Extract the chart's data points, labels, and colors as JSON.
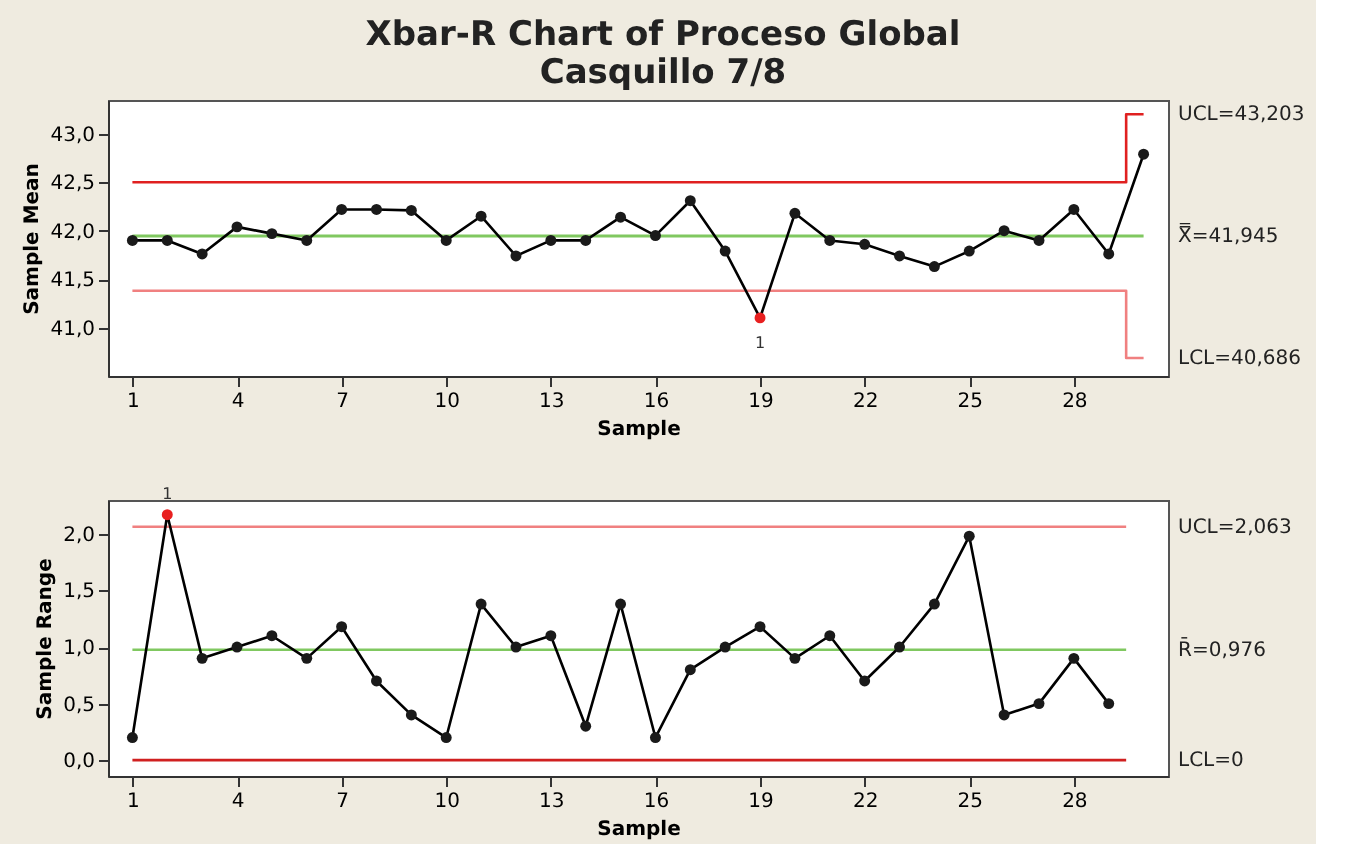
{
  "chart_data": [
    {
      "type": "line",
      "title": "Xbar-R Chart of Proceso Global\nCasquillo 7/8",
      "xlabel": "Sample",
      "ylabel": "Sample Mean",
      "xlim": [
        0.3,
        30.7
      ],
      "xticks": [
        1,
        4,
        7,
        10,
        13,
        16,
        19,
        22,
        25,
        28
      ],
      "ylim": [
        40.5,
        43.35
      ],
      "yticks": [
        {
          "value": 41,
          "label": "41,0"
        },
        {
          "value": 41.5,
          "label": "41,5"
        },
        {
          "value": 42,
          "label": "42,0"
        },
        {
          "value": 42.5,
          "label": "42,5"
        },
        {
          "value": 43,
          "label": "43,0"
        }
      ],
      "grid": false,
      "series": [
        {
          "color": "#e02020",
          "marker": "none",
          "x": [
            1,
            29.5,
            29.5,
            30
          ],
          "values": [
            42.5,
            42.5,
            43.203,
            43.203
          ]
        },
        {
          "color": "#f08080",
          "marker": "none",
          "x": [
            1,
            29.5,
            29.5,
            30
          ],
          "values": [
            41.38,
            41.38,
            40.686,
            40.686
          ]
        },
        {
          "color": "#000000",
          "marker": "circle",
          "x": [
            1,
            2,
            3,
            4,
            5,
            6,
            7,
            8,
            9,
            10,
            11,
            12,
            13,
            14,
            15,
            16,
            17,
            18,
            19,
            20,
            21,
            22,
            23,
            24,
            25,
            26,
            27,
            28,
            29,
            30
          ],
          "values": [
            41.9,
            41.9,
            41.76,
            42.04,
            41.97,
            41.9,
            42.22,
            42.22,
            42.21,
            41.9,
            42.15,
            41.74,
            41.9,
            41.9,
            42.14,
            41.95,
            42.31,
            41.79,
            41.1,
            42.18,
            41.9,
            41.86,
            41.74,
            41.63,
            41.79,
            42.0,
            41.9,
            42.22,
            41.76,
            42.79
          ],
          "colors": [
            "#1a1a1a",
            "#1a1a1a",
            "#1a1a1a",
            "#1a1a1a",
            "#1a1a1a",
            "#1a1a1a",
            "#1a1a1a",
            "#1a1a1a",
            "#1a1a1a",
            "#1a1a1a",
            "#1a1a1a",
            "#1a1a1a",
            "#1a1a1a",
            "#1a1a1a",
            "#1a1a1a",
            "#1a1a1a",
            "#1a1a1a",
            "#1a1a1a",
            "#e82020",
            "#1a1a1a",
            "#1a1a1a",
            "#1a1a1a",
            "#1a1a1a",
            "#1a1a1a",
            "#1a1a1a",
            "#1a1a1a",
            "#1a1a1a",
            "#1a1a1a",
            "#1a1a1a",
            "#1a1a1a"
          ]
        }
      ],
      "ref_lines": [
        {
          "axis": "y",
          "value": 41.945,
          "color": "#80c860"
        }
      ],
      "annotations": [
        {
          "text": "UCL=43,203",
          "x": 30,
          "y": 43.203
        },
        {
          "text": "X̿=41,945",
          "x": 30,
          "y": 41.945
        },
        {
          "text": "LCL=40,686",
          "x": 30,
          "y": 40.686
        },
        {
          "text": "1",
          "x": 19,
          "y": 41.1
        }
      ]
    },
    {
      "type": "line",
      "xlabel": "Sample",
      "ylabel": "Sample Range",
      "xlim": [
        0.3,
        30.7
      ],
      "xticks": [
        1,
        4,
        7,
        10,
        13,
        16,
        19,
        22,
        25,
        28
      ],
      "ylim": [
        -0.14,
        2.3
      ],
      "yticks": [
        {
          "value": 0,
          "label": "0,0"
        },
        {
          "value": 0.5,
          "label": "0,5"
        },
        {
          "value": 1,
          "label": "1,0"
        },
        {
          "value": 1.5,
          "label": "1,5"
        },
        {
          "value": 2,
          "label": "2,0"
        }
      ],
      "grid": false,
      "series": [
        {
          "color": "#f08080",
          "marker": "none",
          "x": [
            1,
            29.5
          ],
          "values": [
            2.063,
            2.063
          ]
        },
        {
          "color": "#80c860",
          "marker": "none",
          "x": [
            1,
            29.5
          ],
          "values": [
            0.976,
            0.976
          ]
        },
        {
          "color": "#d02020",
          "marker": "none",
          "x": [
            1,
            29.5
          ],
          "values": [
            0,
            0
          ]
        },
        {
          "color": "#000000",
          "marker": "circle",
          "x": [
            1,
            2,
            3,
            4,
            5,
            6,
            7,
            8,
            9,
            10,
            11,
            12,
            13,
            14,
            15,
            16,
            17,
            18,
            19,
            20,
            21,
            22,
            23,
            24,
            25,
            26,
            27,
            28,
            29
          ],
          "values": [
            0.2,
            2.17,
            0.9,
            1.0,
            1.1,
            0.9,
            1.18,
            0.7,
            0.4,
            0.2,
            1.38,
            1.0,
            1.1,
            0.3,
            1.38,
            0.2,
            0.8,
            1.0,
            1.18,
            0.9,
            1.1,
            0.7,
            1.0,
            1.38,
            1.98,
            0.4,
            0.5,
            0.9,
            0.5
          ],
          "colors": [
            "#1a1a1a",
            "#e82020",
            "#1a1a1a",
            "#1a1a1a",
            "#1a1a1a",
            "#1a1a1a",
            "#1a1a1a",
            "#1a1a1a",
            "#1a1a1a",
            "#1a1a1a",
            "#1a1a1a",
            "#1a1a1a",
            "#1a1a1a",
            "#1a1a1a",
            "#1a1a1a",
            "#1a1a1a",
            "#1a1a1a",
            "#1a1a1a",
            "#1a1a1a",
            "#1a1a1a",
            "#1a1a1a",
            "#1a1a1a",
            "#1a1a1a",
            "#1a1a1a",
            "#1a1a1a",
            "#1a1a1a",
            "#1a1a1a",
            "#1a1a1a",
            "#1a1a1a"
          ]
        }
      ],
      "annotations": [
        {
          "text": "UCL=2,063",
          "x": 29.5,
          "y": 2.063
        },
        {
          "text": "R̄=0,976",
          "x": 29.5,
          "y": 0.976
        },
        {
          "text": "LCL=0",
          "x": 29.5,
          "y": 0
        },
        {
          "text": "1",
          "x": 2,
          "y": 2.17
        }
      ]
    }
  ]
}
